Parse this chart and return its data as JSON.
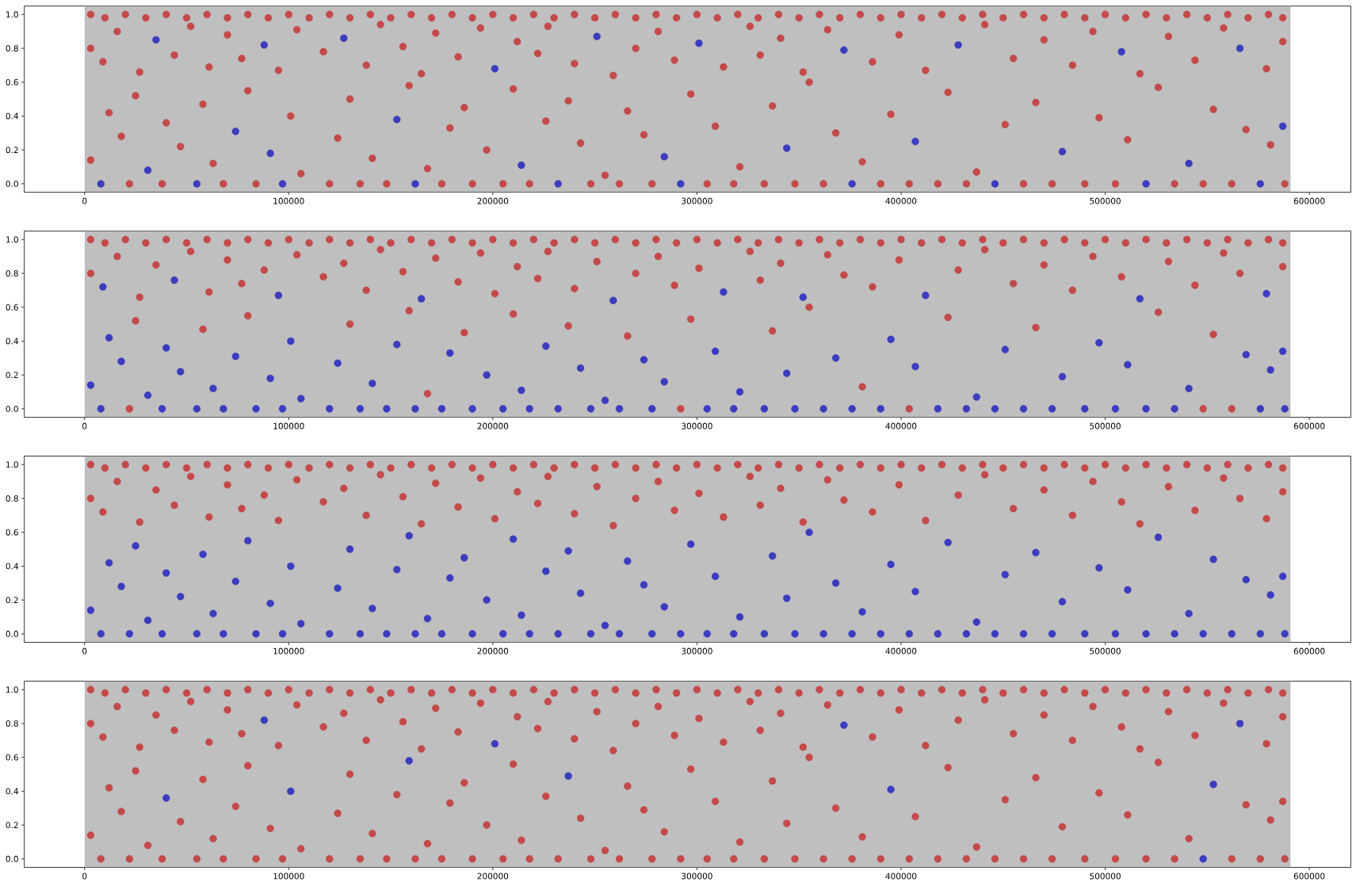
{
  "chart_data": [
    {
      "type": "scatter",
      "xlim": [
        -29540,
        620340
      ],
      "ylim": [
        -0.05,
        1.05
      ],
      "xticks": [
        0,
        100000,
        200000,
        300000,
        400000,
        500000,
        600000
      ],
      "yticks": [
        {
          "value": 0,
          "label": "0.0"
        },
        {
          "value": 0.2,
          "label": "0.2"
        },
        {
          "value": 0.4,
          "label": "0.4"
        },
        {
          "value": 0.6,
          "label": "0.6"
        },
        {
          "value": 0.8,
          "label": "0.8"
        },
        {
          "value": 1,
          "label": "1.0"
        }
      ],
      "marker": "circle",
      "bands": [
        {
          "axis": "x",
          "from": 0,
          "to": 590800,
          "color": "#bfbfbf"
        }
      ],
      "series": [
        {
          "color": "#c44a4a",
          "x": [
            3000,
            10000,
            20000,
            30000,
            40000,
            50000,
            60000,
            70000,
            80000,
            90000,
            100000,
            110000,
            120000,
            130000,
            140000,
            150000,
            160000,
            170000,
            180000,
            190000,
            200000,
            210000,
            220000,
            230000,
            240000,
            250000,
            260000,
            270000,
            280000,
            290000,
            300000,
            310000,
            320000,
            330000,
            340000,
            350000,
            360000,
            370000,
            380000,
            390000,
            400000,
            410000,
            420000,
            430000,
            440000,
            450000,
            460000,
            470000,
            480000,
            490000,
            500000,
            510000,
            520000,
            530000,
            540000,
            550000,
            560000,
            570000,
            580000,
            587000,
            3000,
            9000,
            16000,
            27000,
            44000,
            52000,
            61000,
            70000,
            77000,
            95000,
            104000,
            117000,
            138000,
            145000,
            156000,
            165000,
            172000,
            183000,
            194000,
            212000,
            222000,
            227000,
            240000,
            259000,
            270000,
            281000,
            289000,
            313000,
            326000,
            331000,
            341000,
            352000,
            364000,
            386000,
            399000,
            412000,
            441000,
            455000,
            470000,
            484000,
            494000,
            517000,
            531000,
            544000,
            558000,
            579000,
            587000,
            3000,
            12000,
            18000,
            25000,
            40000,
            47000,
            58000,
            63000,
            80000,
            101000,
            106000,
            124000,
            130000,
            141000,
            159000,
            168000,
            179000,
            186000,
            197000,
            210000,
            226000,
            237000,
            243000,
            255000,
            266000,
            274000,
            297000,
            309000,
            321000,
            337000,
            355000,
            368000,
            381000,
            395000,
            423000,
            437000,
            451000,
            466000,
            497000,
            511000,
            526000,
            553000,
            569000,
            581000,
            22000,
            38000,
            68000,
            84000,
            120000,
            135000,
            148000,
            175000,
            190000,
            205000,
            218000,
            248000,
            262000,
            278000,
            305000,
            318000,
            333000,
            348000,
            362000,
            390000,
            404000,
            418000,
            432000,
            460000,
            474000,
            490000,
            505000,
            534000,
            548000,
            562000,
            588000
          ],
          "values": [
            1,
            0.98,
            1,
            0.98,
            1,
            0.98,
            1,
            0.98,
            1,
            0.98,
            1,
            0.98,
            1,
            0.98,
            1,
            0.98,
            1,
            0.98,
            1,
            0.98,
            1,
            0.98,
            1,
            0.98,
            1,
            0.98,
            1,
            0.98,
            1,
            0.98,
            1,
            0.98,
            1,
            0.98,
            1,
            0.98,
            1,
            0.98,
            1,
            0.98,
            1,
            0.98,
            1,
            0.98,
            1,
            0.98,
            1,
            0.98,
            1,
            0.98,
            1,
            0.98,
            1,
            0.98,
            1,
            0.98,
            1,
            0.98,
            1,
            0.98,
            0.8,
            0.72,
            0.9,
            0.66,
            0.76,
            0.93,
            0.69,
            0.88,
            0.74,
            0.67,
            0.91,
            0.78,
            0.7,
            0.94,
            0.81,
            0.65,
            0.89,
            0.75,
            0.92,
            0.84,
            0.77,
            0.93,
            0.71,
            0.64,
            0.8,
            0.9,
            0.73,
            0.69,
            0.93,
            0.76,
            0.86,
            0.66,
            0.91,
            0.72,
            0.88,
            0.67,
            0.94,
            0.74,
            0.85,
            0.7,
            0.9,
            0.65,
            0.87,
            0.73,
            0.92,
            0.68,
            0.84,
            0.14,
            0.42,
            0.28,
            0.52,
            0.36,
            0.22,
            0.47,
            0.12,
            0.55,
            0.4,
            0.06,
            0.27,
            0.5,
            0.15,
            0.58,
            0.09,
            0.33,
            0.45,
            0.2,
            0.56,
            0.37,
            0.49,
            0.24,
            0.05,
            0.43,
            0.29,
            0.53,
            0.34,
            0.1,
            0.46,
            0.6,
            0.3,
            0.13,
            0.41,
            0.54,
            0.07,
            0.35,
            0.48,
            0.39,
            0.26,
            0.57,
            0.44,
            0.32,
            0.23,
            0,
            0,
            0,
            0,
            0,
            0,
            0,
            0,
            0,
            0,
            0,
            0,
            0,
            0,
            0,
            0,
            0,
            0,
            0,
            0,
            0,
            0,
            0,
            0,
            0,
            0,
            0,
            0,
            0,
            0,
            0
          ]
        },
        {
          "color": "#3c3cbf",
          "x": [
            8000,
            55000,
            97000,
            162000,
            232000,
            292000,
            376000,
            446000,
            520000,
            576000,
            31000,
            74000,
            91000,
            153000,
            214000,
            284000,
            344000,
            407000,
            479000,
            541000,
            587000,
            35000,
            88000,
            127000,
            201000,
            251000,
            301000,
            372000,
            428000,
            508000,
            566000
          ],
          "values": [
            0,
            0,
            0,
            0,
            0,
            0,
            0,
            0,
            0,
            0,
            0.08,
            0.31,
            0.18,
            0.38,
            0.11,
            0.16,
            0.21,
            0.25,
            0.19,
            0.12,
            0.34,
            0.85,
            0.82,
            0.86,
            0.68,
            0.87,
            0.83,
            0.79,
            0.82,
            0.78,
            0.8
          ]
        }
      ]
    },
    {
      "type": "scatter",
      "xlim": [
        -29540,
        620340
      ],
      "ylim": [
        -0.05,
        1.05
      ],
      "xticks": [
        0,
        100000,
        200000,
        300000,
        400000,
        500000,
        600000
      ],
      "yticks": [
        {
          "value": 0,
          "label": "0.0"
        },
        {
          "value": 0.2,
          "label": "0.2"
        },
        {
          "value": 0.4,
          "label": "0.4"
        },
        {
          "value": 0.6,
          "label": "0.6"
        },
        {
          "value": 0.8,
          "label": "0.8"
        },
        {
          "value": 1,
          "label": "1.0"
        }
      ],
      "marker": "circle",
      "bands": [
        {
          "axis": "x",
          "from": 0,
          "to": 590800,
          "color": "#bfbfbf"
        }
      ],
      "series": [
        {
          "color": "#c44a4a",
          "x": [
            3000,
            10000,
            20000,
            30000,
            40000,
            50000,
            60000,
            70000,
            80000,
            90000,
            100000,
            110000,
            120000,
            130000,
            140000,
            150000,
            160000,
            170000,
            180000,
            190000,
            200000,
            210000,
            220000,
            230000,
            240000,
            250000,
            260000,
            270000,
            280000,
            290000,
            300000,
            310000,
            320000,
            330000,
            340000,
            350000,
            360000,
            370000,
            380000,
            390000,
            400000,
            410000,
            420000,
            430000,
            440000,
            450000,
            460000,
            470000,
            480000,
            490000,
            500000,
            510000,
            520000,
            530000,
            540000,
            550000,
            560000,
            570000,
            580000,
            587000,
            3000,
            16000,
            27000,
            35000,
            52000,
            61000,
            70000,
            77000,
            88000,
            104000,
            117000,
            127000,
            138000,
            145000,
            156000,
            172000,
            183000,
            194000,
            201000,
            212000,
            222000,
            227000,
            240000,
            251000,
            270000,
            281000,
            289000,
            301000,
            326000,
            331000,
            341000,
            364000,
            372000,
            386000,
            399000,
            428000,
            441000,
            455000,
            470000,
            484000,
            494000,
            508000,
            531000,
            544000,
            558000,
            566000,
            587000,
            25000,
            58000,
            80000,
            130000,
            159000,
            168000,
            186000,
            210000,
            237000,
            266000,
            297000,
            337000,
            355000,
            381000,
            423000,
            466000,
            526000,
            553000,
            22000,
            292000,
            404000,
            548000,
            562000
          ],
          "values": [
            1,
            0.98,
            1,
            0.98,
            1,
            0.98,
            1,
            0.98,
            1,
            0.98,
            1,
            0.98,
            1,
            0.98,
            1,
            0.98,
            1,
            0.98,
            1,
            0.98,
            1,
            0.98,
            1,
            0.98,
            1,
            0.98,
            1,
            0.98,
            1,
            0.98,
            1,
            0.98,
            1,
            0.98,
            1,
            0.98,
            1,
            0.98,
            1,
            0.98,
            1,
            0.98,
            1,
            0.98,
            1,
            0.98,
            1,
            0.98,
            1,
            0.98,
            1,
            0.98,
            1,
            0.98,
            1,
            0.98,
            1,
            0.98,
            1,
            0.98,
            0.8,
            0.9,
            0.66,
            0.85,
            0.93,
            0.69,
            0.88,
            0.74,
            0.82,
            0.91,
            0.78,
            0.86,
            0.7,
            0.94,
            0.81,
            0.89,
            0.75,
            0.92,
            0.68,
            0.84,
            0.77,
            0.93,
            0.71,
            0.87,
            0.8,
            0.9,
            0.73,
            0.83,
            0.93,
            0.76,
            0.86,
            0.91,
            0.79,
            0.72,
            0.88,
            0.82,
            0.94,
            0.74,
            0.85,
            0.7,
            0.9,
            0.78,
            0.87,
            0.73,
            0.92,
            0.8,
            0.84,
            0.52,
            0.47,
            0.55,
            0.5,
            0.58,
            0.09,
            0.45,
            0.56,
            0.49,
            0.43,
            0.53,
            0.46,
            0.6,
            0.13,
            0.54,
            0.48,
            0.57,
            0.44,
            0,
            0,
            0,
            0,
            0
          ]
        },
        {
          "color": "#3c3cbf",
          "x": [
            8000,
            38000,
            55000,
            68000,
            84000,
            97000,
            120000,
            135000,
            148000,
            162000,
            175000,
            190000,
            205000,
            218000,
            232000,
            248000,
            262000,
            278000,
            305000,
            318000,
            333000,
            348000,
            362000,
            376000,
            390000,
            418000,
            432000,
            446000,
            460000,
            474000,
            490000,
            505000,
            520000,
            534000,
            576000,
            588000,
            3000,
            12000,
            18000,
            31000,
            40000,
            47000,
            63000,
            74000,
            91000,
            101000,
            106000,
            124000,
            141000,
            153000,
            179000,
            197000,
            214000,
            226000,
            243000,
            255000,
            274000,
            284000,
            309000,
            321000,
            344000,
            368000,
            395000,
            407000,
            437000,
            451000,
            479000,
            497000,
            511000,
            541000,
            569000,
            581000,
            587000,
            9000,
            44000,
            95000,
            165000,
            259000,
            313000,
            352000,
            412000,
            517000,
            579000
          ],
          "values": [
            0,
            0,
            0,
            0,
            0,
            0,
            0,
            0,
            0,
            0,
            0,
            0,
            0,
            0,
            0,
            0,
            0,
            0,
            0,
            0,
            0,
            0,
            0,
            0,
            0,
            0,
            0,
            0,
            0,
            0,
            0,
            0,
            0,
            0,
            0,
            0,
            0.14,
            0.42,
            0.28,
            0.08,
            0.36,
            0.22,
            0.12,
            0.31,
            0.18,
            0.4,
            0.06,
            0.27,
            0.15,
            0.38,
            0.33,
            0.2,
            0.11,
            0.37,
            0.24,
            0.05,
            0.29,
            0.16,
            0.34,
            0.1,
            0.21,
            0.3,
            0.41,
            0.25,
            0.07,
            0.35,
            0.19,
            0.39,
            0.26,
            0.12,
            0.32,
            0.23,
            0.34,
            0.72,
            0.76,
            0.67,
            0.65,
            0.64,
            0.69,
            0.66,
            0.67,
            0.65,
            0.68
          ]
        }
      ]
    },
    {
      "type": "scatter",
      "xlim": [
        -29540,
        620340
      ],
      "ylim": [
        -0.05,
        1.05
      ],
      "xticks": [
        0,
        100000,
        200000,
        300000,
        400000,
        500000,
        600000
      ],
      "yticks": [
        {
          "value": 0,
          "label": "0.0"
        },
        {
          "value": 0.2,
          "label": "0.2"
        },
        {
          "value": 0.4,
          "label": "0.4"
        },
        {
          "value": 0.6,
          "label": "0.6"
        },
        {
          "value": 0.8,
          "label": "0.8"
        },
        {
          "value": 1,
          "label": "1.0"
        }
      ],
      "marker": "circle",
      "bands": [
        {
          "axis": "x",
          "from": 0,
          "to": 590800,
          "color": "#bfbfbf"
        }
      ],
      "series": [
        {
          "color": "#c44a4a",
          "x": [
            3000,
            10000,
            20000,
            30000,
            40000,
            50000,
            60000,
            70000,
            80000,
            90000,
            100000,
            110000,
            120000,
            130000,
            140000,
            150000,
            160000,
            170000,
            180000,
            190000,
            200000,
            210000,
            220000,
            230000,
            240000,
            250000,
            260000,
            270000,
            280000,
            290000,
            300000,
            310000,
            320000,
            330000,
            340000,
            350000,
            360000,
            370000,
            380000,
            390000,
            400000,
            410000,
            420000,
            430000,
            440000,
            450000,
            460000,
            470000,
            480000,
            490000,
            500000,
            510000,
            520000,
            530000,
            540000,
            550000,
            560000,
            570000,
            580000,
            587000,
            3000,
            9000,
            16000,
            27000,
            35000,
            44000,
            52000,
            61000,
            70000,
            77000,
            88000,
            95000,
            104000,
            117000,
            127000,
            138000,
            145000,
            156000,
            165000,
            172000,
            183000,
            194000,
            201000,
            212000,
            222000,
            227000,
            240000,
            251000,
            259000,
            270000,
            281000,
            289000,
            301000,
            313000,
            326000,
            331000,
            341000,
            352000,
            364000,
            372000,
            386000,
            399000,
            412000,
            428000,
            441000,
            455000,
            470000,
            484000,
            494000,
            508000,
            517000,
            531000,
            544000,
            558000,
            566000,
            579000,
            587000
          ],
          "values": [
            1,
            0.98,
            1,
            0.98,
            1,
            0.98,
            1,
            0.98,
            1,
            0.98,
            1,
            0.98,
            1,
            0.98,
            1,
            0.98,
            1,
            0.98,
            1,
            0.98,
            1,
            0.98,
            1,
            0.98,
            1,
            0.98,
            1,
            0.98,
            1,
            0.98,
            1,
            0.98,
            1,
            0.98,
            1,
            0.98,
            1,
            0.98,
            1,
            0.98,
            1,
            0.98,
            1,
            0.98,
            1,
            0.98,
            1,
            0.98,
            1,
            0.98,
            1,
            0.98,
            1,
            0.98,
            1,
            0.98,
            1,
            0.98,
            1,
            0.98,
            0.8,
            0.72,
            0.9,
            0.66,
            0.85,
            0.76,
            0.93,
            0.69,
            0.88,
            0.74,
            0.82,
            0.67,
            0.91,
            0.78,
            0.86,
            0.7,
            0.94,
            0.81,
            0.65,
            0.89,
            0.75,
            0.92,
            0.68,
            0.84,
            0.77,
            0.93,
            0.71,
            0.87,
            0.64,
            0.8,
            0.9,
            0.73,
            0.83,
            0.69,
            0.93,
            0.76,
            0.86,
            0.66,
            0.91,
            0.79,
            0.72,
            0.88,
            0.67,
            0.82,
            0.94,
            0.74,
            0.85,
            0.7,
            0.9,
            0.78,
            0.65,
            0.87,
            0.73,
            0.92,
            0.8,
            0.68,
            0.84
          ]
        },
        {
          "color": "#3c3cbf",
          "x": [
            3000,
            12000,
            18000,
            25000,
            31000,
            40000,
            47000,
            58000,
            63000,
            74000,
            80000,
            91000,
            101000,
            106000,
            124000,
            130000,
            141000,
            153000,
            159000,
            168000,
            179000,
            186000,
            197000,
            210000,
            214000,
            226000,
            237000,
            243000,
            255000,
            266000,
            274000,
            284000,
            297000,
            309000,
            321000,
            337000,
            344000,
            355000,
            368000,
            381000,
            395000,
            407000,
            423000,
            437000,
            451000,
            466000,
            479000,
            497000,
            511000,
            526000,
            541000,
            553000,
            569000,
            581000,
            587000,
            8000,
            22000,
            38000,
            55000,
            68000,
            84000,
            97000,
            120000,
            135000,
            148000,
            162000,
            175000,
            190000,
            205000,
            218000,
            232000,
            248000,
            262000,
            278000,
            292000,
            305000,
            318000,
            333000,
            348000,
            362000,
            376000,
            390000,
            404000,
            418000,
            432000,
            446000,
            460000,
            474000,
            490000,
            505000,
            520000,
            534000,
            548000,
            562000,
            576000,
            588000
          ],
          "values": [
            0.14,
            0.42,
            0.28,
            0.52,
            0.08,
            0.36,
            0.22,
            0.47,
            0.12,
            0.31,
            0.55,
            0.18,
            0.4,
            0.06,
            0.27,
            0.5,
            0.15,
            0.38,
            0.58,
            0.09,
            0.33,
            0.45,
            0.2,
            0.56,
            0.11,
            0.37,
            0.49,
            0.24,
            0.05,
            0.43,
            0.29,
            0.16,
            0.53,
            0.34,
            0.1,
            0.46,
            0.21,
            0.6,
            0.3,
            0.13,
            0.41,
            0.25,
            0.54,
            0.07,
            0.35,
            0.48,
            0.19,
            0.39,
            0.26,
            0.57,
            0.12,
            0.44,
            0.32,
            0.23,
            0.34,
            0,
            0,
            0,
            0,
            0,
            0,
            0,
            0,
            0,
            0,
            0,
            0,
            0,
            0,
            0,
            0,
            0,
            0,
            0,
            0,
            0,
            0,
            0,
            0,
            0,
            0,
            0,
            0,
            0,
            0,
            0,
            0,
            0,
            0,
            0,
            0,
            0,
            0,
            0,
            0,
            0
          ]
        }
      ]
    },
    {
      "type": "scatter",
      "xlim": [
        -29540,
        620340
      ],
      "ylim": [
        -0.05,
        1.05
      ],
      "xticks": [
        0,
        100000,
        200000,
        300000,
        400000,
        500000,
        600000
      ],
      "yticks": [
        {
          "value": 0,
          "label": "0.0"
        },
        {
          "value": 0.2,
          "label": "0.2"
        },
        {
          "value": 0.4,
          "label": "0.4"
        },
        {
          "value": 0.6,
          "label": "0.6"
        },
        {
          "value": 0.8,
          "label": "0.8"
        },
        {
          "value": 1,
          "label": "1.0"
        }
      ],
      "marker": "circle",
      "bands": [
        {
          "axis": "x",
          "from": 0,
          "to": 590800,
          "color": "#bfbfbf"
        }
      ],
      "series": [
        {
          "color": "#c44a4a",
          "x": [
            3000,
            10000,
            20000,
            30000,
            40000,
            50000,
            60000,
            70000,
            80000,
            90000,
            100000,
            110000,
            120000,
            130000,
            140000,
            150000,
            160000,
            170000,
            180000,
            190000,
            200000,
            210000,
            220000,
            230000,
            240000,
            250000,
            260000,
            270000,
            280000,
            290000,
            300000,
            310000,
            320000,
            330000,
            340000,
            350000,
            360000,
            370000,
            380000,
            390000,
            400000,
            410000,
            420000,
            430000,
            440000,
            450000,
            460000,
            470000,
            480000,
            490000,
            500000,
            510000,
            520000,
            530000,
            540000,
            550000,
            560000,
            570000,
            580000,
            587000,
            3000,
            9000,
            16000,
            27000,
            35000,
            44000,
            52000,
            61000,
            70000,
            77000,
            95000,
            104000,
            117000,
            127000,
            138000,
            145000,
            156000,
            165000,
            172000,
            183000,
            194000,
            212000,
            222000,
            227000,
            240000,
            251000,
            259000,
            270000,
            281000,
            289000,
            301000,
            313000,
            326000,
            331000,
            341000,
            352000,
            364000,
            386000,
            399000,
            412000,
            428000,
            441000,
            455000,
            470000,
            484000,
            494000,
            508000,
            517000,
            531000,
            544000,
            558000,
            579000,
            587000,
            3000,
            12000,
            18000,
            25000,
            31000,
            47000,
            58000,
            63000,
            74000,
            80000,
            91000,
            106000,
            124000,
            130000,
            141000,
            153000,
            168000,
            179000,
            186000,
            197000,
            210000,
            214000,
            226000,
            243000,
            255000,
            266000,
            274000,
            284000,
            297000,
            309000,
            321000,
            337000,
            344000,
            355000,
            368000,
            381000,
            407000,
            423000,
            437000,
            451000,
            466000,
            479000,
            497000,
            511000,
            526000,
            541000,
            569000,
            581000,
            587000,
            8000,
            22000,
            38000,
            55000,
            68000,
            84000,
            97000,
            120000,
            135000,
            148000,
            162000,
            175000,
            190000,
            205000,
            218000,
            232000,
            248000,
            262000,
            278000,
            292000,
            305000,
            318000,
            333000,
            348000,
            362000,
            376000,
            390000,
            404000,
            418000,
            432000,
            446000,
            460000,
            474000,
            490000,
            505000,
            520000,
            534000,
            562000,
            576000,
            588000
          ],
          "values": [
            1,
            0.98,
            1,
            0.98,
            1,
            0.98,
            1,
            0.98,
            1,
            0.98,
            1,
            0.98,
            1,
            0.98,
            1,
            0.98,
            1,
            0.98,
            1,
            0.98,
            1,
            0.98,
            1,
            0.98,
            1,
            0.98,
            1,
            0.98,
            1,
            0.98,
            1,
            0.98,
            1,
            0.98,
            1,
            0.98,
            1,
            0.98,
            1,
            0.98,
            1,
            0.98,
            1,
            0.98,
            1,
            0.98,
            1,
            0.98,
            1,
            0.98,
            1,
            0.98,
            1,
            0.98,
            1,
            0.98,
            1,
            0.98,
            1,
            0.98,
            0.8,
            0.72,
            0.9,
            0.66,
            0.85,
            0.76,
            0.93,
            0.69,
            0.88,
            0.74,
            0.67,
            0.91,
            0.78,
            0.86,
            0.7,
            0.94,
            0.81,
            0.65,
            0.89,
            0.75,
            0.92,
            0.84,
            0.77,
            0.93,
            0.71,
            0.87,
            0.64,
            0.8,
            0.9,
            0.73,
            0.83,
            0.69,
            0.93,
            0.76,
            0.86,
            0.66,
            0.91,
            0.72,
            0.88,
            0.67,
            0.82,
            0.94,
            0.74,
            0.85,
            0.7,
            0.9,
            0.78,
            0.65,
            0.87,
            0.73,
            0.92,
            0.68,
            0.84,
            0.14,
            0.42,
            0.28,
            0.52,
            0.08,
            0.22,
            0.47,
            0.12,
            0.31,
            0.55,
            0.18,
            0.06,
            0.27,
            0.5,
            0.15,
            0.38,
            0.09,
            0.33,
            0.45,
            0.2,
            0.56,
            0.11,
            0.37,
            0.24,
            0.05,
            0.43,
            0.29,
            0.16,
            0.53,
            0.34,
            0.1,
            0.46,
            0.21,
            0.6,
            0.3,
            0.13,
            0.25,
            0.54,
            0.07,
            0.35,
            0.48,
            0.19,
            0.39,
            0.26,
            0.57,
            0.12,
            0.32,
            0.23,
            0.34,
            0,
            0,
            0,
            0,
            0,
            0,
            0,
            0,
            0,
            0,
            0,
            0,
            0,
            0,
            0,
            0,
            0,
            0,
            0,
            0,
            0,
            0,
            0,
            0,
            0,
            0,
            0,
            0,
            0,
            0,
            0,
            0,
            0,
            0,
            0,
            0,
            0,
            0,
            0,
            0
          ]
        },
        {
          "color": "#3c3cbf",
          "x": [
            40000,
            101000,
            159000,
            237000,
            395000,
            553000,
            88000,
            201000,
            372000,
            566000,
            548000
          ],
          "values": [
            0.36,
            0.4,
            0.58,
            0.49,
            0.41,
            0.44,
            0.82,
            0.68,
            0.79,
            0.8,
            0
          ]
        }
      ]
    }
  ]
}
